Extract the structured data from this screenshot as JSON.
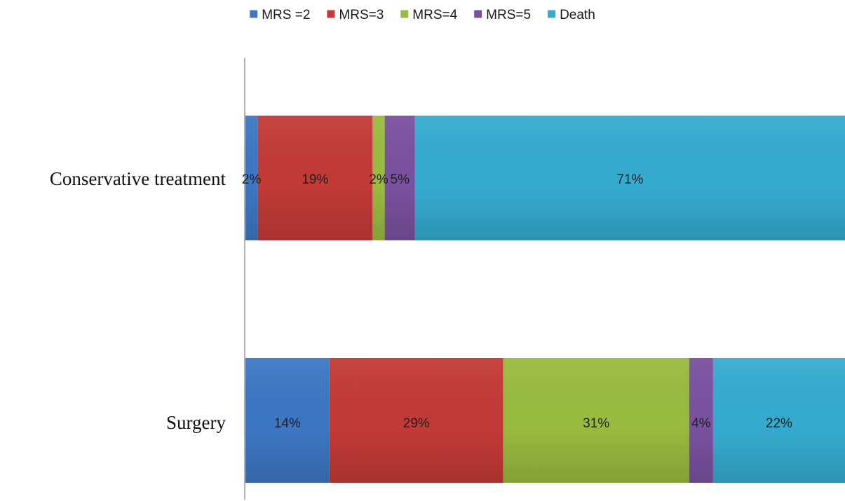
{
  "chart_data": {
    "type": "bar",
    "orientation": "horizontal",
    "stacking": "percent",
    "categories": [
      "Conservative treatment",
      "Surgery"
    ],
    "series": [
      {
        "name": "MRS =2",
        "values": [
          2,
          14
        ],
        "labels": [
          "2%",
          "14%"
        ],
        "color": "#3d77c4"
      },
      {
        "name": "MRS=3",
        "values": [
          19,
          29
        ],
        "labels": [
          "19%",
          "29%"
        ],
        "color": "#c33a37"
      },
      {
        "name": "MRS=4",
        "values": [
          2,
          31
        ],
        "labels": [
          "2%",
          "31%"
        ],
        "color": "#99bb3f"
      },
      {
        "name": "MRS=5",
        "values": [
          5,
          4
        ],
        "labels": [
          "5%",
          "4%"
        ],
        "color": "#7a51a0"
      },
      {
        "name": "Death",
        "values": [
          71,
          22
        ],
        "labels": [
          "71%",
          "22%"
        ],
        "color": "#35abd0"
      }
    ],
    "legend_position": "top-center",
    "grid": false,
    "xlim": [
      0,
      100
    ]
  }
}
